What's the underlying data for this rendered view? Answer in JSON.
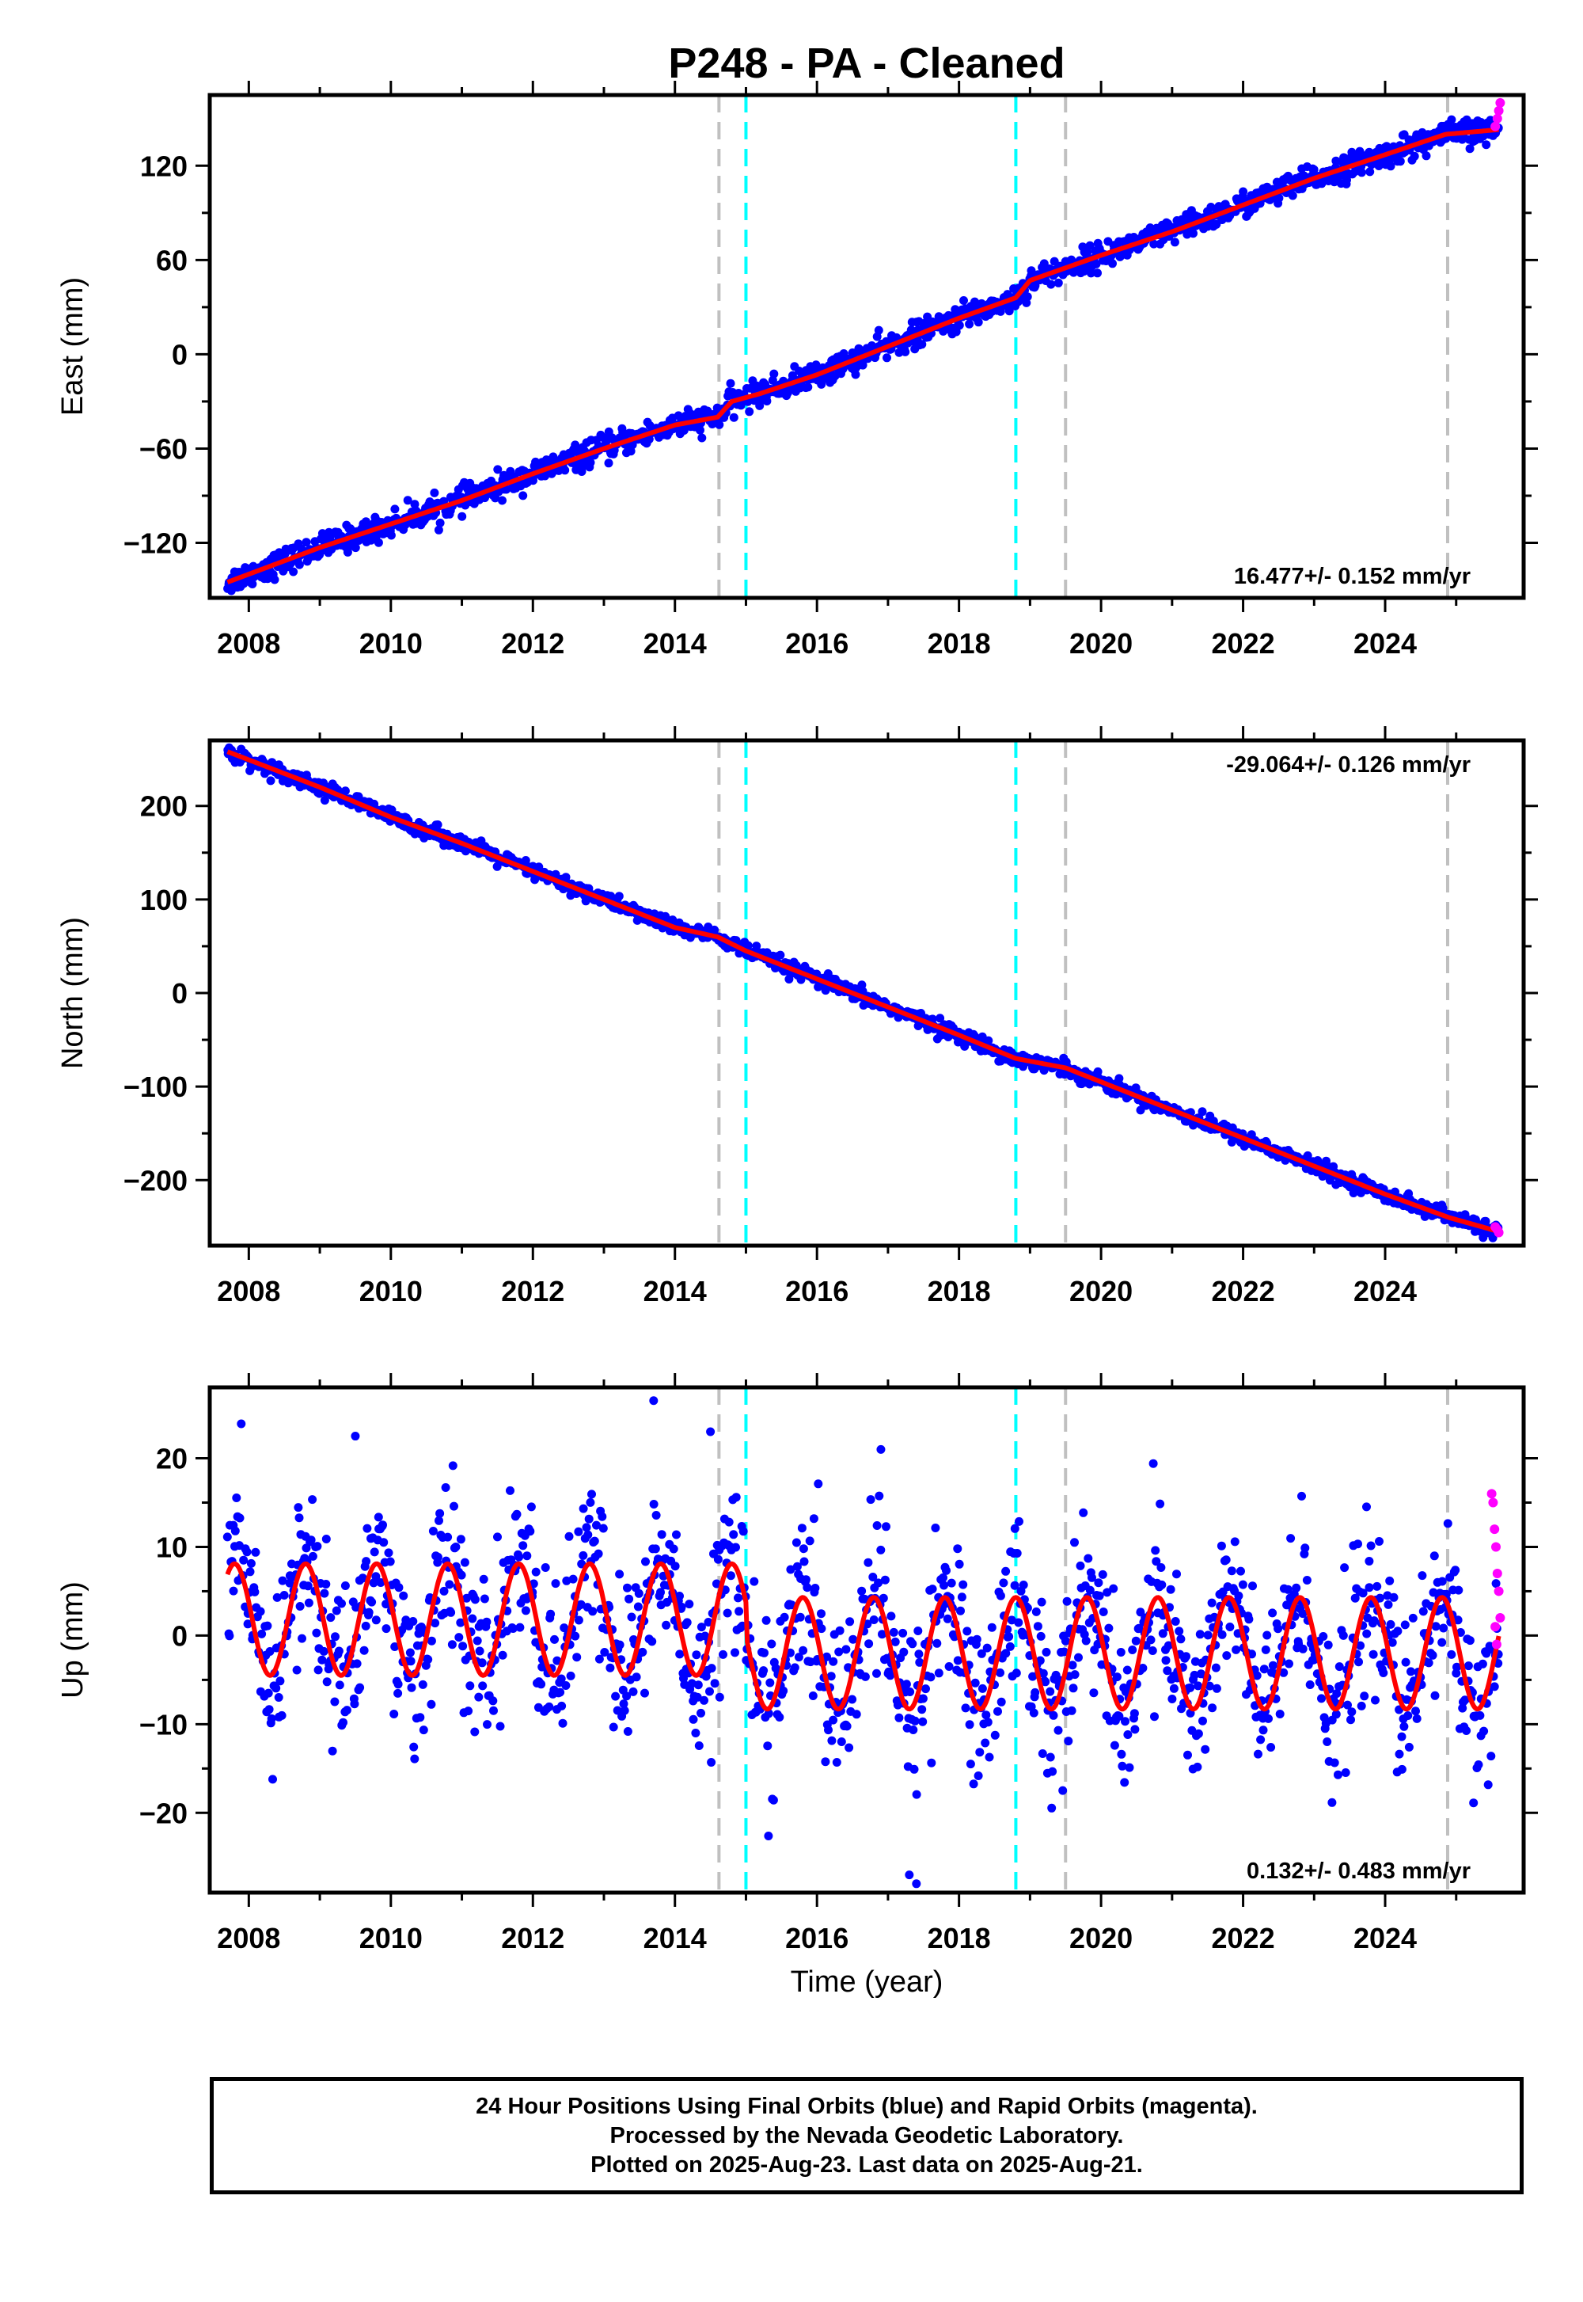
{
  "title": "P248  - PA - Cleaned",
  "colors": {
    "final_orbits": "#0000ff",
    "rapid_orbits": "#ff00ff",
    "model": "#ff0000",
    "equipment_change": "#c0c0c0",
    "earthquake": "#00ffff"
  },
  "footer": {
    "line1": "24 Hour Positions Using Final Orbits (blue) and Rapid Orbits (magenta).",
    "line2": "Processed by the Nevada Geodetic Laboratory.",
    "line3": "Plotted on 2025-Aug-23. Last data on 2025-Aug-21."
  },
  "chart_data": [
    {
      "type": "scatter",
      "component": "east",
      "ylabel": "East (mm)",
      "xlabel": "",
      "xlim": [
        2007.45,
        2025.95
      ],
      "ylim": [
        -155,
        165
      ],
      "xticks": [
        "2008",
        "2010",
        "2012",
        "2014",
        "2016",
        "2018",
        "2020",
        "2022",
        "2024"
      ],
      "yticks": [
        "120",
        "60",
        "0",
        "−60",
        "−120"
      ],
      "ytick_values": [
        120,
        60,
        0,
        -60,
        -120
      ],
      "rate": "16.477+/- 0.152 mm/yr",
      "rate_position": "bottom-right",
      "model": {
        "x": [
          2007.7,
          2009,
          2010,
          2011,
          2012,
          2013,
          2014,
          2014.6,
          2014.8,
          2015.2,
          2016,
          2017,
          2018,
          2018.8,
          2019,
          2020,
          2021,
          2022,
          2023,
          2024,
          2024.85,
          2025.6
        ],
        "y": [
          -145,
          -123,
          -108,
          -93,
          -76,
          -60,
          -45,
          -40,
          -30,
          -25,
          -13,
          5,
          23,
          36,
          47,
          63,
          78,
          95,
          112,
          127,
          140,
          143
        ]
      },
      "rapid": {
        "x": [
          2025.55,
          2025.58,
          2025.6,
          2025.62
        ],
        "y": [
          145,
          150,
          155,
          160
        ]
      },
      "scatter_noise": 4
    },
    {
      "type": "scatter",
      "component": "north",
      "ylabel": "North (mm)",
      "xlabel": "",
      "xlim": [
        2007.45,
        2025.95
      ],
      "ylim": [
        -270,
        270
      ],
      "xticks": [
        "2008",
        "2010",
        "2012",
        "2014",
        "2016",
        "2018",
        "2020",
        "2022",
        "2024"
      ],
      "yticks": [
        "200",
        "100",
        "0",
        "−100",
        "−200"
      ],
      "ytick_values": [
        200,
        100,
        0,
        -100,
        -200
      ],
      "rate": "-29.064+/- 0.126 mm/yr",
      "rate_position": "top-right",
      "model": {
        "x": [
          2007.7,
          2009,
          2010,
          2011,
          2012,
          2013,
          2014,
          2014.6,
          2015,
          2016,
          2017,
          2018,
          2018.8,
          2019.5,
          2020,
          2021,
          2022,
          2023,
          2024,
          2024.9,
          2025.6
        ],
        "y": [
          258,
          220,
          188,
          160,
          130,
          100,
          70,
          60,
          45,
          15,
          -15,
          -45,
          -70,
          -80,
          -95,
          -125,
          -155,
          -185,
          -215,
          -240,
          -255
        ]
      },
      "rapid": {
        "x": [
          2025.55,
          2025.58,
          2025.6
        ],
        "y": [
          -250,
          -253,
          -256
        ]
      },
      "scatter_noise": 4
    },
    {
      "type": "scatter",
      "component": "up",
      "ylabel": "Up (mm)",
      "xlabel": "Time (year)",
      "xlim": [
        2007.45,
        2025.95
      ],
      "ylim": [
        -29,
        28
      ],
      "xticks": [
        "2008",
        "2010",
        "2012",
        "2014",
        "2016",
        "2018",
        "2020",
        "2022",
        "2024"
      ],
      "yticks": [
        "20",
        "10",
        "0",
        "−10",
        "−20"
      ],
      "ytick_values": [
        20,
        10,
        0,
        -10,
        -20
      ],
      "rate": "0.132+/- 0.483 mm/yr",
      "rate_position": "bottom-right",
      "model": {
        "x_start": 2007.7,
        "x_end": 2025.6,
        "amplitude": 6.3,
        "period_years": 1.0,
        "offset_before_2015": 1.8,
        "offset_after_2015": -2.0,
        "peak_phase": 0.8
      },
      "outliers": {
        "x": [
          2013.7,
          2014.5,
          2016.9,
          2017.3,
          2017.4,
          2009.5
        ],
        "y": [
          26.5,
          23,
          21,
          -27,
          -28,
          22.5
        ]
      },
      "rapid": {
        "x": [
          2025.5,
          2025.52,
          2025.54,
          2025.56,
          2025.58,
          2025.6,
          2025.62,
          2025.55,
          2025.57
        ],
        "y": [
          16,
          15,
          12,
          10,
          7,
          5,
          2,
          1,
          -1
        ]
      },
      "scatter_noise": 4.5
    }
  ],
  "vertical_lines": {
    "equipment_change": [
      2014.62,
      2019.5,
      2024.88
    ],
    "earthquake": [
      2015.0,
      2018.8
    ]
  }
}
